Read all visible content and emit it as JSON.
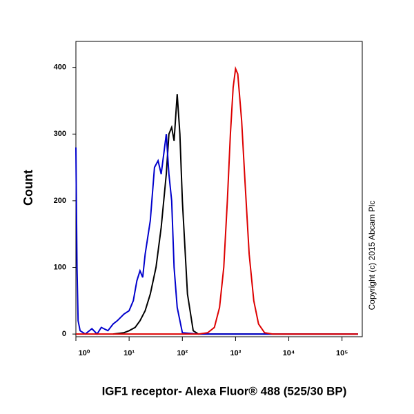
{
  "chart_data": {
    "type": "line",
    "xlabel": "IGF1 receptor- Alexa Fluor® 488 (525/30 BP)",
    "ylabel": "Count",
    "annotation": "Copyright (c) 2015 Abcam Plc",
    "xscale": "log",
    "xlim": [
      1,
      240000
    ],
    "ylim": [
      -4,
      439
    ],
    "xticks": [
      {
        "value": 1,
        "label": "10⁰"
      },
      {
        "value": 10,
        "label": "10¹"
      },
      {
        "value": 100,
        "label": "10²"
      },
      {
        "value": 1000,
        "label": "10³"
      },
      {
        "value": 10000,
        "label": "10⁴"
      },
      {
        "value": 100000,
        "label": "10⁵"
      }
    ],
    "yticks": [
      0,
      100,
      200,
      300,
      400
    ],
    "series": [
      {
        "color": "#000000",
        "x": [
          5,
          8,
          10,
          13,
          16,
          20,
          25,
          32,
          40,
          50,
          56,
          63,
          70,
          80,
          90,
          100,
          125,
          160,
          200,
          300,
          1000,
          10000,
          200000
        ],
        "values": [
          0,
          2,
          5,
          10,
          20,
          35,
          60,
          100,
          160,
          240,
          300,
          310,
          290,
          360,
          300,
          200,
          60,
          5,
          0,
          0,
          0,
          0,
          0
        ]
      },
      {
        "color": "#0000cc",
        "x": [
          1,
          1.05,
          1.1,
          1.2,
          1.5,
          2,
          2.5,
          3,
          4,
          5,
          6,
          8,
          10,
          12,
          14,
          16,
          18,
          20,
          25,
          30,
          35,
          40,
          50,
          56,
          63,
          70,
          80,
          100,
          200,
          1000,
          200000
        ],
        "values": [
          280,
          100,
          20,
          5,
          0,
          8,
          0,
          10,
          5,
          15,
          20,
          30,
          35,
          50,
          80,
          95,
          85,
          120,
          170,
          250,
          260,
          240,
          300,
          240,
          200,
          100,
          40,
          2,
          0,
          0,
          0
        ]
      },
      {
        "color": "#dd0000",
        "x": [
          1,
          200,
          300,
          400,
          500,
          600,
          700,
          800,
          900,
          1000,
          1100,
          1300,
          1500,
          1800,
          2200,
          2700,
          3500,
          5000,
          200000
        ],
        "values": [
          0,
          0,
          2,
          10,
          40,
          100,
          200,
          300,
          370,
          398,
          390,
          320,
          230,
          120,
          50,
          15,
          2,
          0,
          0
        ]
      }
    ]
  }
}
